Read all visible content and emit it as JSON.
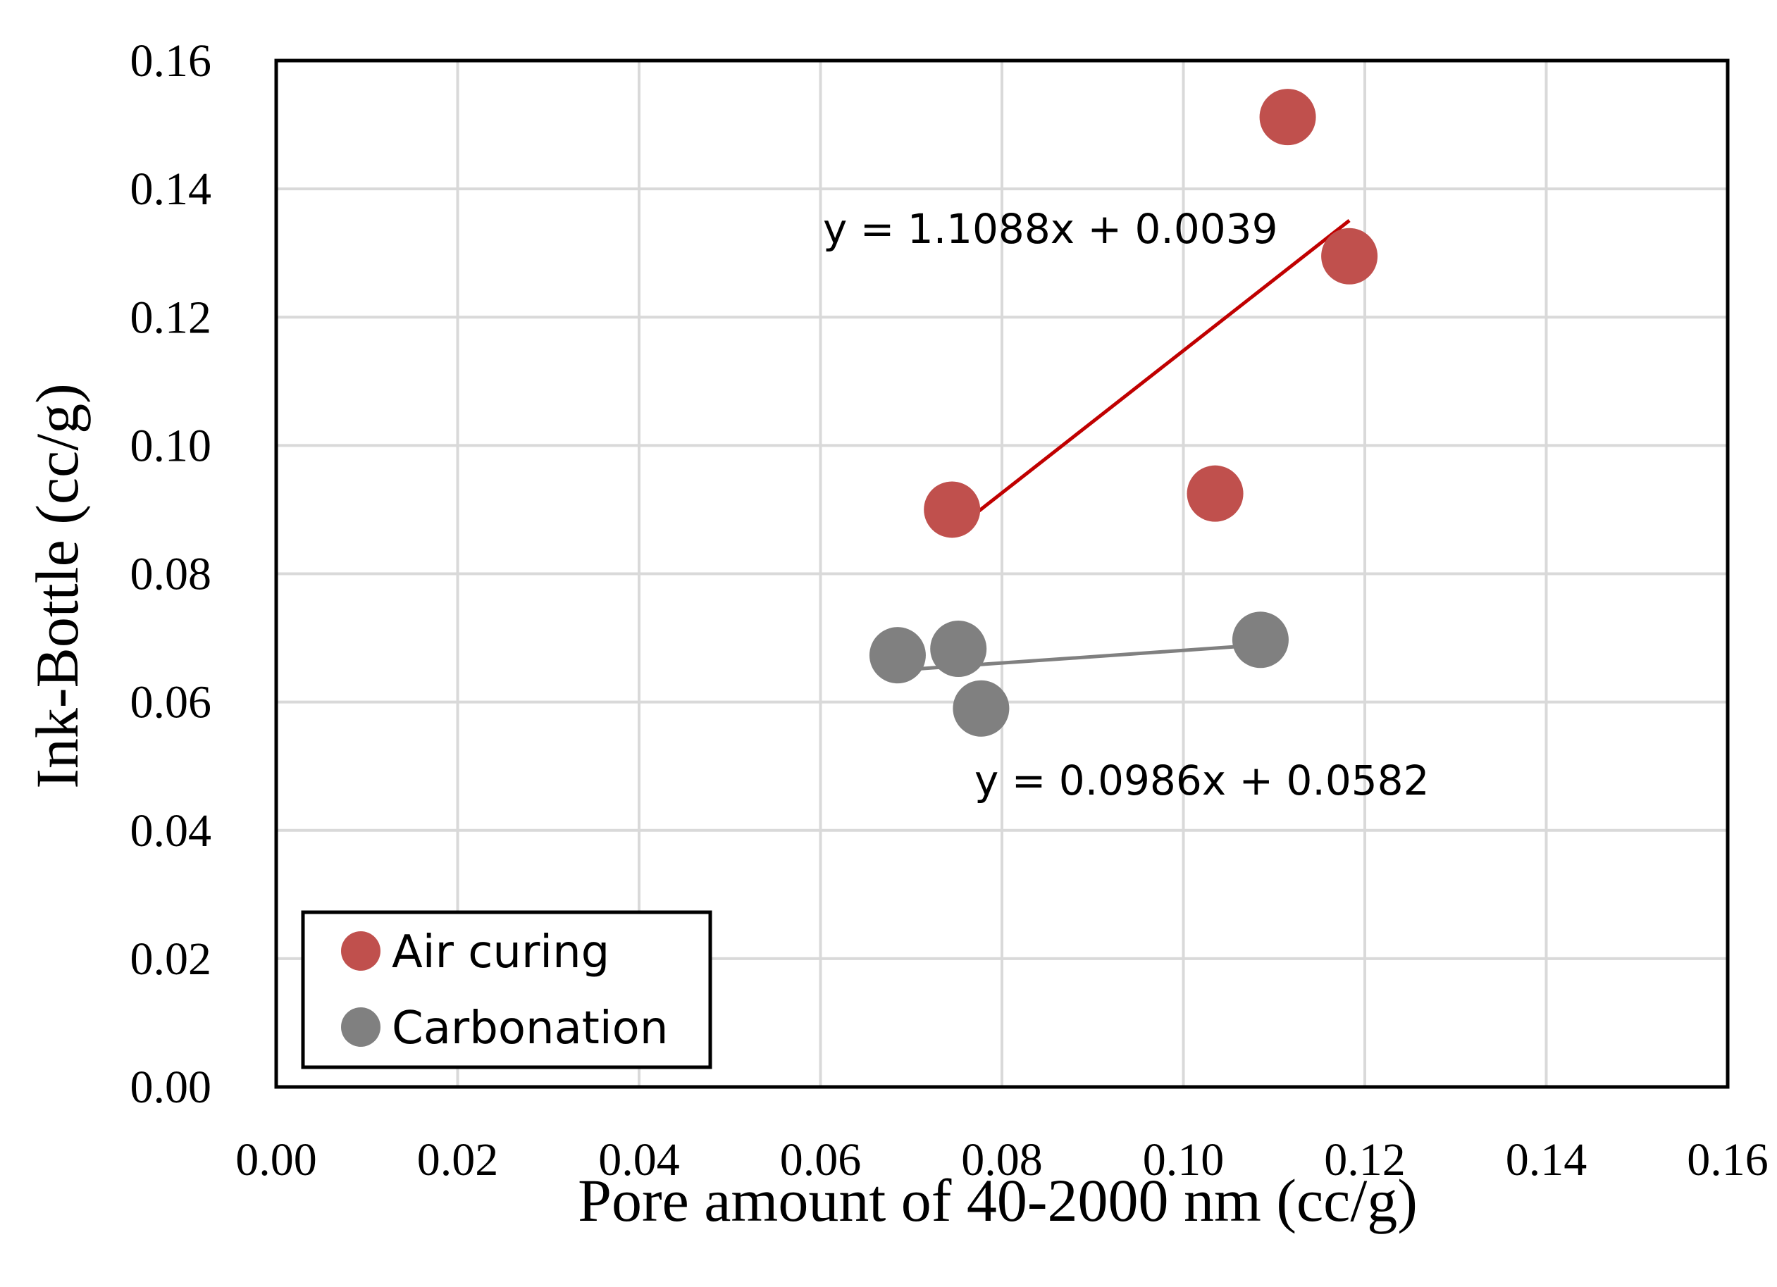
{
  "chart_data": {
    "type": "scatter",
    "title": "",
    "xlabel": "Pore amount of 40-2000 nm (cc/g)",
    "ylabel": "Ink-Bottle (cc/g)",
    "xlim": [
      0,
      0.16
    ],
    "ylim": [
      0,
      0.16
    ],
    "x_ticks": [
      "0.00",
      "0.02",
      "0.04",
      "0.06",
      "0.08",
      "0.10",
      "0.12",
      "0.14",
      "0.16"
    ],
    "y_ticks": [
      "0.00",
      "0.02",
      "0.04",
      "0.06",
      "0.08",
      "0.10",
      "0.12",
      "0.14",
      "0.16"
    ],
    "grid": true,
    "legend_position": "bottom-left",
    "series": [
      {
        "name": "Air curing",
        "color": "#c0504d",
        "trend_color": "#c00000",
        "points": [
          {
            "x": 0.0745,
            "y": 0.09
          },
          {
            "x": 0.1035,
            "y": 0.0925
          },
          {
            "x": 0.1115,
            "y": 0.1512
          },
          {
            "x": 0.1183,
            "y": 0.1295
          }
        ],
        "trendline": {
          "slope": 1.1088,
          "intercept": 0.0039,
          "x_range": [
            0.0745,
            0.1183
          ]
        },
        "equation": "y = 1.1088x + 0.0039"
      },
      {
        "name": "Carbonation",
        "color": "#808080",
        "trend_color": "#808080",
        "points": [
          {
            "x": 0.0685,
            "y": 0.0673
          },
          {
            "x": 0.0752,
            "y": 0.0683
          },
          {
            "x": 0.0777,
            "y": 0.059
          },
          {
            "x": 0.1085,
            "y": 0.0697
          }
        ],
        "trendline": {
          "slope": 0.0986,
          "intercept": 0.0582,
          "x_range": [
            0.0685,
            0.1085
          ]
        },
        "equation": "y = 0.0986x + 0.0582"
      }
    ]
  }
}
